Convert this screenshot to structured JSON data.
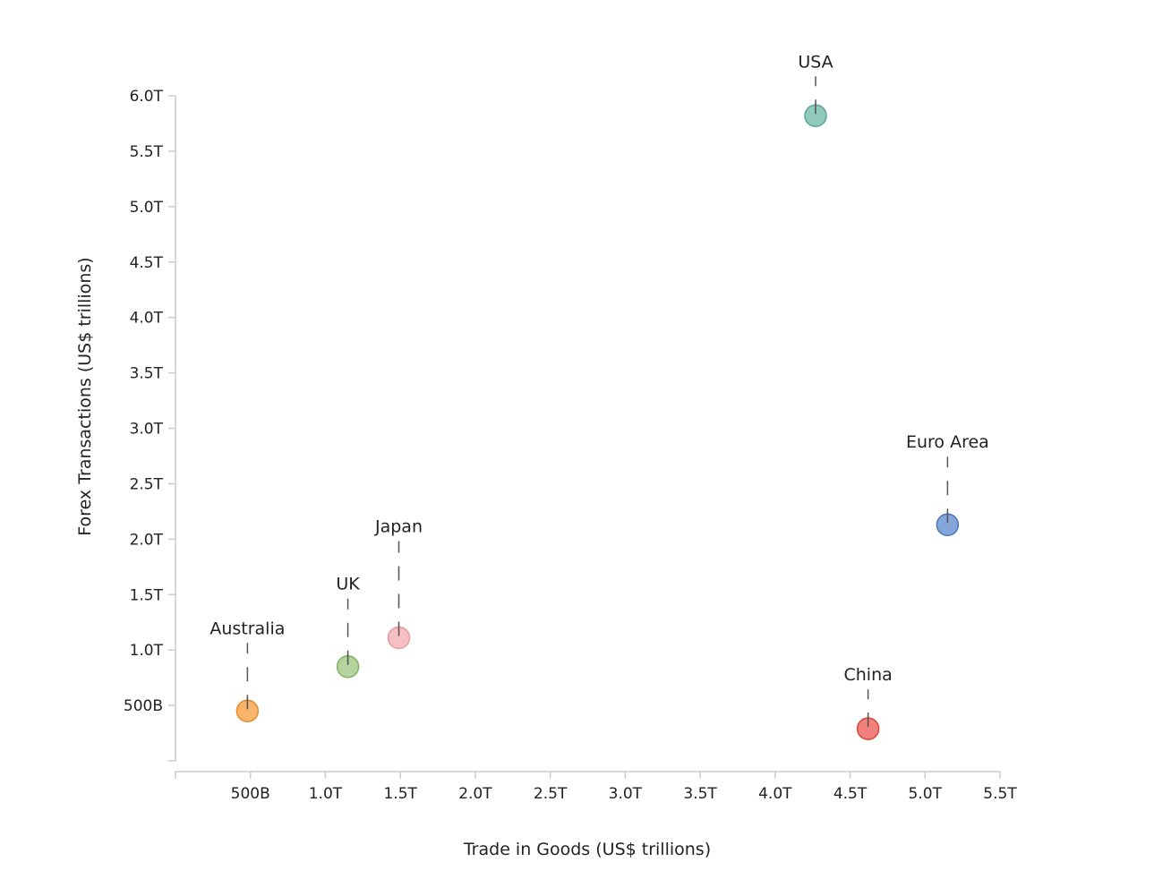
{
  "chart_data": {
    "type": "scatter",
    "title": "",
    "xlabel": "Trade in Goods (US$ trillions)",
    "ylabel": "Forex Transactions (US$ trillions)",
    "xlim": [
      0,
      5.5
    ],
    "ylim": [
      0,
      6.0
    ],
    "x_ticks": [
      {
        "value": 0.5,
        "label": "500B"
      },
      {
        "value": 1.0,
        "label": "1.0T"
      },
      {
        "value": 1.5,
        "label": "1.5T"
      },
      {
        "value": 2.0,
        "label": "2.0T"
      },
      {
        "value": 2.5,
        "label": "2.5T"
      },
      {
        "value": 3.0,
        "label": "3.0T"
      },
      {
        "value": 3.5,
        "label": "3.5T"
      },
      {
        "value": 4.0,
        "label": "4.0T"
      },
      {
        "value": 4.5,
        "label": "4.5T"
      },
      {
        "value": 5.0,
        "label": "5.0T"
      },
      {
        "value": 5.5,
        "label": "5.5T"
      }
    ],
    "y_ticks": [
      {
        "value": 0.5,
        "label": "500B"
      },
      {
        "value": 1.0,
        "label": "1.0T"
      },
      {
        "value": 1.5,
        "label": "1.5T"
      },
      {
        "value": 2.0,
        "label": "2.0T"
      },
      {
        "value": 2.5,
        "label": "2.5T"
      },
      {
        "value": 3.0,
        "label": "3.0T"
      },
      {
        "value": 3.5,
        "label": "3.5T"
      },
      {
        "value": 4.0,
        "label": "4.0T"
      },
      {
        "value": 4.5,
        "label": "4.5T"
      },
      {
        "value": 5.0,
        "label": "5.0T"
      },
      {
        "value": 5.5,
        "label": "5.5T"
      },
      {
        "value": 6.0,
        "label": "6.0T"
      }
    ],
    "points": [
      {
        "name": "USA",
        "x": 4.27,
        "y": 5.82,
        "color": "#7fc0b1",
        "stroke": "#5fa595"
      },
      {
        "name": "Euro Area",
        "x": 5.15,
        "y": 2.13,
        "color": "#6f97d4",
        "stroke": "#4a76ba"
      },
      {
        "name": "Japan",
        "x": 1.49,
        "y": 1.11,
        "color": "#f5b5b9",
        "stroke": "#e79aa0"
      },
      {
        "name": "UK",
        "x": 1.15,
        "y": 0.85,
        "color": "#a8cb8c",
        "stroke": "#85b066"
      },
      {
        "name": "Australia",
        "x": 0.48,
        "y": 0.45,
        "color": "#f7a750",
        "stroke": "#e48d2d"
      },
      {
        "name": "China",
        "x": 4.62,
        "y": 0.29,
        "color": "#ee6b65",
        "stroke": "#d4463f"
      }
    ],
    "label_offsets_units_note": "label placement above points",
    "label_rise": [
      {
        "name": "USA",
        "rise": 1
      },
      {
        "name": "Euro Area",
        "rise": 2
      },
      {
        "name": "Japan",
        "rise": 3
      },
      {
        "name": "UK",
        "rise": 2
      },
      {
        "name": "Australia",
        "rise": 2
      },
      {
        "name": "China",
        "rise": 1
      }
    ]
  }
}
